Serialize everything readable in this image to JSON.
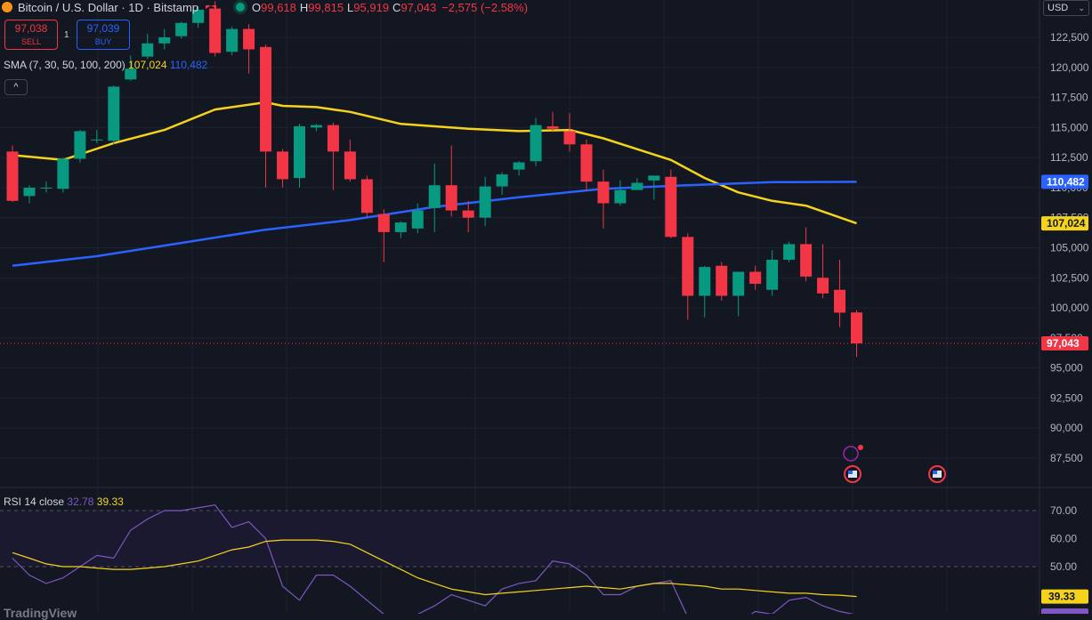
{
  "header": {
    "symbol_title": "Bitcoin / U.S. Dollar · 1D · Bitstamp",
    "o_label": "O",
    "o_value": "99,618",
    "h_label": "H",
    "h_value": "99,815",
    "l_label": "L",
    "l_value": "95,919",
    "c_label": "C",
    "c_value": "97,043",
    "change": "−2,575 (−2.58%)"
  },
  "trade": {
    "sell_price": "97,038",
    "sell_label": "SELL",
    "spread": "1",
    "buy_price": "97,039",
    "buy_label": "BUY"
  },
  "indicators": {
    "sma_label": "SMA (7, 30, 50, 100, 200)",
    "sma_val1": "107,024",
    "sma_val2": "110,482",
    "collapse_icon": "^",
    "rsi_label": "RSI 14 close",
    "rsi_val1": "32.78",
    "rsi_val2": "39.33"
  },
  "currency": {
    "label": "USD",
    "chevron": "⌄"
  },
  "watermark": "TradingView",
  "colors": {
    "background": "#131722",
    "up": "#089981",
    "down": "#f23645",
    "sma_yellow": "#f5d31d",
    "sma_blue": "#2962ff",
    "rsi_purple": "#7e57c2"
  },
  "chart_data": [
    {
      "type": "candlestick",
      "title": "Bitcoin / U.S. Dollar · 1D · Bitstamp",
      "ylim": [
        85000,
        125000
      ],
      "price_ticks": [
        122500,
        120000,
        117500,
        115000,
        112500,
        110000,
        107500,
        105000,
        102500,
        100000,
        97500,
        95000,
        92500,
        90000,
        87500
      ],
      "price_tick_labels": [
        "122,500",
        "120,000",
        "117,500",
        "115,000",
        "112,500",
        "110,000",
        "107,500",
        "105,000",
        "102,500",
        "100,000",
        "97,500",
        "95,000",
        "92,500",
        "90,000",
        "87,500"
      ],
      "candles": [
        {
          "o": 113000,
          "h": 113500,
          "l": 108800,
          "c": 108900
        },
        {
          "o": 109300,
          "h": 110200,
          "l": 108700,
          "c": 110000
        },
        {
          "o": 110000,
          "h": 110500,
          "l": 109600,
          "c": 110000
        },
        {
          "o": 109900,
          "h": 112500,
          "l": 109600,
          "c": 112400
        },
        {
          "o": 112400,
          "h": 114800,
          "l": 112100,
          "c": 114700
        },
        {
          "o": 114000,
          "h": 114800,
          "l": 113700,
          "c": 114000
        },
        {
          "o": 113900,
          "h": 118500,
          "l": 113600,
          "c": 118400
        },
        {
          "o": 119000,
          "h": 121000,
          "l": 118900,
          "c": 119900
        },
        {
          "o": 120900,
          "h": 122800,
          "l": 120700,
          "c": 122000
        },
        {
          "o": 122000,
          "h": 123200,
          "l": 121500,
          "c": 122500
        },
        {
          "o": 122600,
          "h": 123800,
          "l": 122400,
          "c": 123700
        },
        {
          "o": 123700,
          "h": 125100,
          "l": 123300,
          "c": 124800
        },
        {
          "o": 124900,
          "h": 125500,
          "l": 120900,
          "c": 121200
        },
        {
          "o": 121300,
          "h": 123400,
          "l": 121000,
          "c": 123200
        },
        {
          "o": 123200,
          "h": 123600,
          "l": 119500,
          "c": 121500
        },
        {
          "o": 121700,
          "h": 121900,
          "l": 110000,
          "c": 113000
        },
        {
          "o": 113000,
          "h": 113200,
          "l": 110000,
          "c": 110700
        },
        {
          "o": 110800,
          "h": 115300,
          "l": 110000,
          "c": 115100
        },
        {
          "o": 115000,
          "h": 115300,
          "l": 114700,
          "c": 115200
        },
        {
          "o": 115200,
          "h": 115400,
          "l": 109800,
          "c": 113000
        },
        {
          "o": 113000,
          "h": 114000,
          "l": 110500,
          "c": 110700
        },
        {
          "o": 110700,
          "h": 111000,
          "l": 107500,
          "c": 107900
        },
        {
          "o": 107800,
          "h": 108200,
          "l": 103800,
          "c": 106300
        },
        {
          "o": 106300,
          "h": 107200,
          "l": 105800,
          "c": 107100
        },
        {
          "o": 106600,
          "h": 108700,
          "l": 106200,
          "c": 108100
        },
        {
          "o": 108300,
          "h": 112000,
          "l": 106300,
          "c": 110200
        },
        {
          "o": 110200,
          "h": 113500,
          "l": 107600,
          "c": 108100
        },
        {
          "o": 108100,
          "h": 108900,
          "l": 106300,
          "c": 107500
        },
        {
          "o": 107500,
          "h": 110900,
          "l": 106800,
          "c": 110100
        },
        {
          "o": 110100,
          "h": 111300,
          "l": 109400,
          "c": 111100
        },
        {
          "o": 111500,
          "h": 112200,
          "l": 111000,
          "c": 112100
        },
        {
          "o": 112200,
          "h": 115800,
          "l": 111800,
          "c": 115200
        },
        {
          "o": 115100,
          "h": 116300,
          "l": 114600,
          "c": 114900
        },
        {
          "o": 114700,
          "h": 116200,
          "l": 113000,
          "c": 113600
        },
        {
          "o": 113600,
          "h": 114000,
          "l": 109700,
          "c": 110500
        },
        {
          "o": 110500,
          "h": 111500,
          "l": 106600,
          "c": 108700
        },
        {
          "o": 108700,
          "h": 110600,
          "l": 108500,
          "c": 109800
        },
        {
          "o": 109800,
          "h": 110800,
          "l": 109800,
          "c": 110400
        },
        {
          "o": 110600,
          "h": 110900,
          "l": 109000,
          "c": 111000
        },
        {
          "o": 110900,
          "h": 111500,
          "l": 105800,
          "c": 105900
        },
        {
          "o": 105900,
          "h": 106200,
          "l": 99000,
          "c": 101000
        },
        {
          "o": 101000,
          "h": 103500,
          "l": 99200,
          "c": 103400
        },
        {
          "o": 103500,
          "h": 103800,
          "l": 100600,
          "c": 101000
        },
        {
          "o": 101000,
          "h": 103000,
          "l": 99300,
          "c": 103000
        },
        {
          "o": 103000,
          "h": 103500,
          "l": 101500,
          "c": 102000
        },
        {
          "o": 101500,
          "h": 104800,
          "l": 101000,
          "c": 104000
        },
        {
          "o": 104000,
          "h": 105500,
          "l": 103800,
          "c": 105300
        },
        {
          "o": 105300,
          "h": 106700,
          "l": 102200,
          "c": 102600
        },
        {
          "o": 102500,
          "h": 105300,
          "l": 100800,
          "c": 101200
        },
        {
          "o": 101500,
          "h": 104000,
          "l": 98400,
          "c": 99600
        },
        {
          "o": 99618,
          "h": 99815,
          "l": 95919,
          "c": 97043
        }
      ],
      "sma_series": [
        {
          "name": "SMA",
          "color": "#f5d31d",
          "last_label": "107,024",
          "last_value": 107024,
          "points": [
            [
              0,
              112700
            ],
            [
              3,
              112300
            ],
            [
              6,
              113700
            ],
            [
              9,
              114800
            ],
            [
              12,
              116500
            ],
            [
              15,
              117100
            ],
            [
              16,
              116800
            ],
            [
              18,
              116700
            ],
            [
              20,
              116300
            ],
            [
              23,
              115300
            ],
            [
              27,
              114900
            ],
            [
              30,
              114700
            ],
            [
              33,
              114800
            ],
            [
              35,
              114100
            ],
            [
              37,
              113200
            ],
            [
              39,
              112300
            ],
            [
              41,
              110800
            ],
            [
              43,
              109600
            ],
            [
              45,
              108900
            ],
            [
              47,
              108500
            ],
            [
              50,
              107024
            ]
          ]
        },
        {
          "name": "SMA",
          "color": "#2962ff",
          "last_label": "110,482",
          "last_value": 110482,
          "points": [
            [
              0,
              103500
            ],
            [
              5,
              104300
            ],
            [
              10,
              105400
            ],
            [
              15,
              106500
            ],
            [
              20,
              107300
            ],
            [
              25,
              108400
            ],
            [
              30,
              109200
            ],
            [
              35,
              109900
            ],
            [
              40,
              110200
            ],
            [
              45,
              110450
            ],
            [
              50,
              110482
            ]
          ]
        }
      ],
      "last_price_label": "97,043",
      "last_price": 97043
    },
    {
      "type": "line",
      "title": "RSI 14 close",
      "ylim": [
        30,
        75
      ],
      "ticks": [
        70,
        60,
        50
      ],
      "tick_labels": [
        "70.00",
        "60.00",
        "50.00"
      ],
      "series": [
        {
          "name": "RSI",
          "color": "#7e57c2",
          "values": [
            53,
            47,
            44,
            46,
            50,
            54,
            53,
            63,
            67,
            70,
            70,
            71,
            72,
            64,
            66,
            60,
            43,
            38,
            47,
            47,
            43,
            38,
            33,
            31,
            33,
            36,
            40,
            38,
            36,
            42,
            44,
            45,
            52,
            51,
            47,
            40,
            40,
            43,
            44,
            45,
            32,
            29,
            33,
            30,
            34,
            33,
            38,
            39,
            36,
            34,
            32.78
          ]
        },
        {
          "name": "RSI-based MA",
          "color": "#f5d31d",
          "values": [
            55,
            53,
            51,
            50,
            50,
            49.5,
            49,
            49,
            49.5,
            50,
            51,
            52,
            54,
            56,
            57,
            59,
            59.5,
            59.5,
            59.5,
            59,
            58,
            55,
            52,
            49,
            46,
            44,
            42,
            41,
            40,
            40.5,
            41,
            41.5,
            42,
            42.5,
            43,
            42.5,
            42,
            43,
            44,
            44,
            43.5,
            43,
            42,
            42,
            41.5,
            41,
            40.5,
            40.5,
            40,
            39.8,
            39.33
          ]
        }
      ],
      "last_label": "39.33"
    }
  ]
}
